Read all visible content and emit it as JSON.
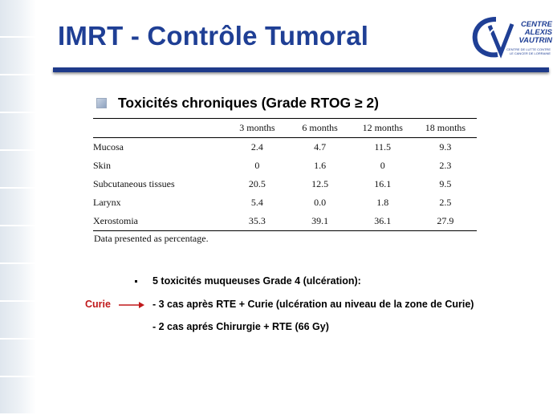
{
  "slide": {
    "title": "IMRT - Contrôle Tumoral",
    "subtitle": "Toxicités chroniques (Grade RTOG ≥ 2)",
    "logo": {
      "line1": "CENTRE",
      "line2": "ALEXIS",
      "line3": "VAUTRIN",
      "sub": "CENTRE DE LUTTE CONTRE LE CANCER DE LORRAINE"
    }
  },
  "table": {
    "columns": [
      "",
      "3 months",
      "6 months",
      "12 months",
      "18 months"
    ],
    "rows": [
      {
        "label": "Mucosa",
        "values": [
          "2.4",
          "4.7",
          "11.5",
          "9.3"
        ]
      },
      {
        "label": "Skin",
        "values": [
          "0",
          "1.6",
          "0",
          "2.3"
        ]
      },
      {
        "label": "Subcutaneous tissues",
        "values": [
          "20.5",
          "12.5",
          "16.1",
          "9.5"
        ]
      },
      {
        "label": "Larynx",
        "values": [
          "5.4",
          "0.0",
          "1.8",
          "2.5"
        ]
      },
      {
        "label": "Xerostomia",
        "values": [
          "35.3",
          "39.1",
          "36.1",
          "27.9"
        ]
      }
    ],
    "footnote": "Data presented as percentage."
  },
  "notes": {
    "bullet": "5 toxicités muqueuses Grade 4 (ulcération):",
    "line2": "- 3 cas après RTE + Curie (ulcération au niveau de la zone de Curie)",
    "line3": "- 2 cas aprés Chirurgie + RTE (66 Gy)",
    "curie_label": "Curie"
  },
  "colors": {
    "title": "#1f3f95",
    "accent_red": "#c0191b",
    "rule": "#1e3a8a"
  }
}
